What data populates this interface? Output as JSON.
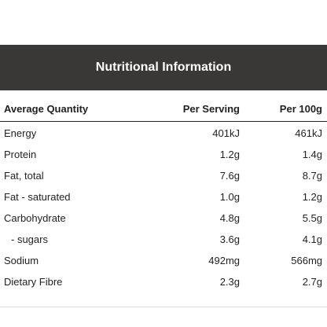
{
  "title": "Nutritional Information",
  "headers": {
    "label": "Average Quantity",
    "per_serving": "Per Serving",
    "per_100g": "Per 100g"
  },
  "rows": [
    {
      "label": "Energy",
      "per_serving": "401kJ",
      "per_100g": "461kJ"
    },
    {
      "label": "Protein",
      "per_serving": "1.2g",
      "per_100g": "1.4g"
    },
    {
      "label": "Fat, total",
      "per_serving": "7.6g",
      "per_100g": "8.7g"
    },
    {
      "label": "Fat - saturated",
      "per_serving": "1.0g",
      "per_100g": "1.2g"
    },
    {
      "label": "Carbohydrate",
      "per_serving": "4.8g",
      "per_100g": "5.5g"
    },
    {
      "label": "- sugars",
      "per_serving": "3.6g",
      "per_100g": "4.1g"
    },
    {
      "label": "Sodium",
      "per_serving": "492mg",
      "per_100g": "566mg"
    },
    {
      "label": "Dietary Fibre",
      "per_serving": "2.3g",
      "per_100g": "2.7g"
    }
  ]
}
